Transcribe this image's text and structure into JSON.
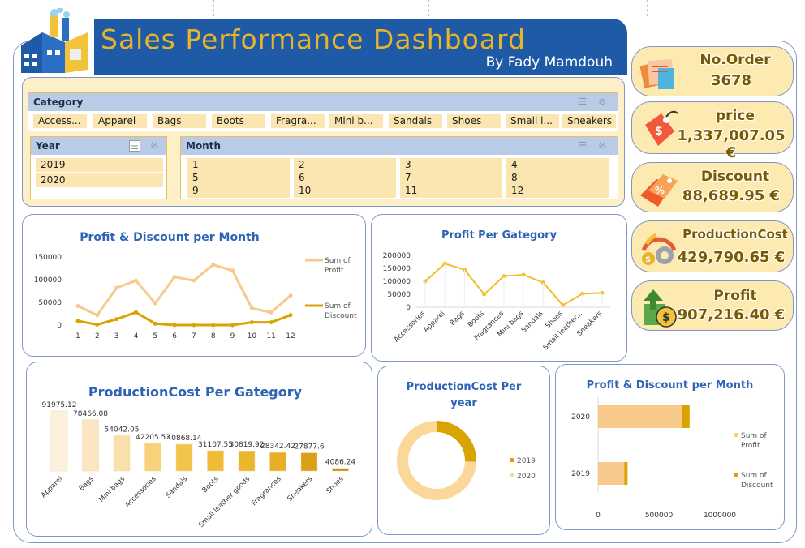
{
  "header": {
    "title": "Sales Performance Dashboard",
    "subtitle": "By Fady Mamdouh"
  },
  "filters": {
    "category": {
      "label": "Category",
      "items": [
        "Access...",
        "Apparel",
        "Bags",
        "Boots",
        "Fragra...",
        "Mini b...",
        "Sandals",
        "Shoes",
        "Small l...",
        "Sneakers"
      ]
    },
    "year": {
      "label": "Year",
      "items": [
        "2019",
        "2020"
      ]
    },
    "month": {
      "label": "Month",
      "items": [
        "1",
        "2",
        "3",
        "4",
        "5",
        "6",
        "7",
        "8",
        "9",
        "10",
        "11",
        "12"
      ]
    }
  },
  "kpis": [
    {
      "label": "No.Order",
      "value": "3678",
      "icon": "order-icon"
    },
    {
      "label": "price",
      "value": "1,337,007.05 €",
      "icon": "price-tag-icon"
    },
    {
      "label": "Discount",
      "value": "88,689.95 €",
      "icon": "discount-tag-icon"
    },
    {
      "label": "ProductionCost",
      "value": "429,790.65 €",
      "icon": "gear-cost-icon"
    },
    {
      "label": "Profit",
      "value": "907,216.40 €",
      "icon": "money-growth-icon"
    }
  ],
  "colors": {
    "navy": "#1f5aa6",
    "gold": "#e9b42a",
    "profit": "#f7c98a",
    "discount": "#d9a300",
    "border": "#7f96c6",
    "title": "#2f63b4"
  },
  "chart_data": [
    {
      "id": "profit-discount-month",
      "type": "line",
      "title": "Profit & Discount per Month",
      "categories": [
        "1",
        "2",
        "3",
        "4",
        "5",
        "6",
        "7",
        "8",
        "9",
        "10",
        "11",
        "12"
      ],
      "series": [
        {
          "name": "Sum of Profit",
          "values": [
            42000,
            22000,
            82000,
            98000,
            48000,
            106000,
            98000,
            133000,
            120000,
            37000,
            28000,
            65000
          ]
        },
        {
          "name": "Sum of Discount",
          "values": [
            9000,
            1000,
            13000,
            28000,
            3000,
            0,
            0,
            0,
            0,
            6000,
            6000,
            22000
          ]
        }
      ],
      "yticks": [
        "150000",
        "100000",
        "50000",
        "0"
      ],
      "ylim": [
        0,
        150000
      ],
      "legend": "right"
    },
    {
      "id": "profit-per-category",
      "type": "line",
      "title": "Profit Per Gategory",
      "categories": [
        "Accessories",
        "Apparel",
        "Bags",
        "Boots",
        "Fragrances",
        "Mini bags",
        "Sandals",
        "Shoes",
        "Small leather...",
        "Sneakers"
      ],
      "values": [
        100000,
        168000,
        145000,
        50000,
        120000,
        125000,
        95000,
        8000,
        52000,
        55000
      ],
      "yticks": [
        "200000",
        "150000",
        "100000",
        "50000",
        "0"
      ],
      "ylim": [
        0,
        200000
      ]
    },
    {
      "id": "production-cost-category",
      "type": "bar",
      "title": "ProductionCost  Per Gategory",
      "categories": [
        "Apparel",
        "Bags",
        "Mini bags",
        "Accessories",
        "Sandals",
        "Boots",
        "Small leather goods",
        "Fragrances",
        "Sneakers",
        "Shoes"
      ],
      "values": [
        91975.12,
        78466.08,
        54042.05,
        42205.53,
        40868.14,
        31107.55,
        30819.92,
        28342.42,
        27877.6,
        4086.24
      ],
      "labels": [
        "91975.12",
        "78466.08",
        "54042.05",
        "42205.53",
        "40868.14",
        "31107.55",
        "30819.92",
        "28342.42",
        "27877.6",
        "4086.24"
      ]
    },
    {
      "id": "production-cost-year",
      "type": "pie",
      "title": "ProductionCost Per year",
      "categories": [
        "2019",
        "2020"
      ],
      "values": [
        110000,
        319790.65
      ],
      "legend": "right"
    },
    {
      "id": "profit-discount-year",
      "type": "bar",
      "title": "Profit & Discount per Month",
      "categories": [
        "2020",
        "2019"
      ],
      "series": [
        {
          "name": "Sum of Profit",
          "values": [
            690000,
            215000
          ]
        },
        {
          "name": "Sum of Discount",
          "values": [
            62000,
            27000
          ]
        }
      ],
      "xticks": [
        "0",
        "500000",
        "1000000"
      ],
      "xlim": [
        0,
        1000000
      ],
      "stacked": true,
      "legend": "right"
    }
  ]
}
